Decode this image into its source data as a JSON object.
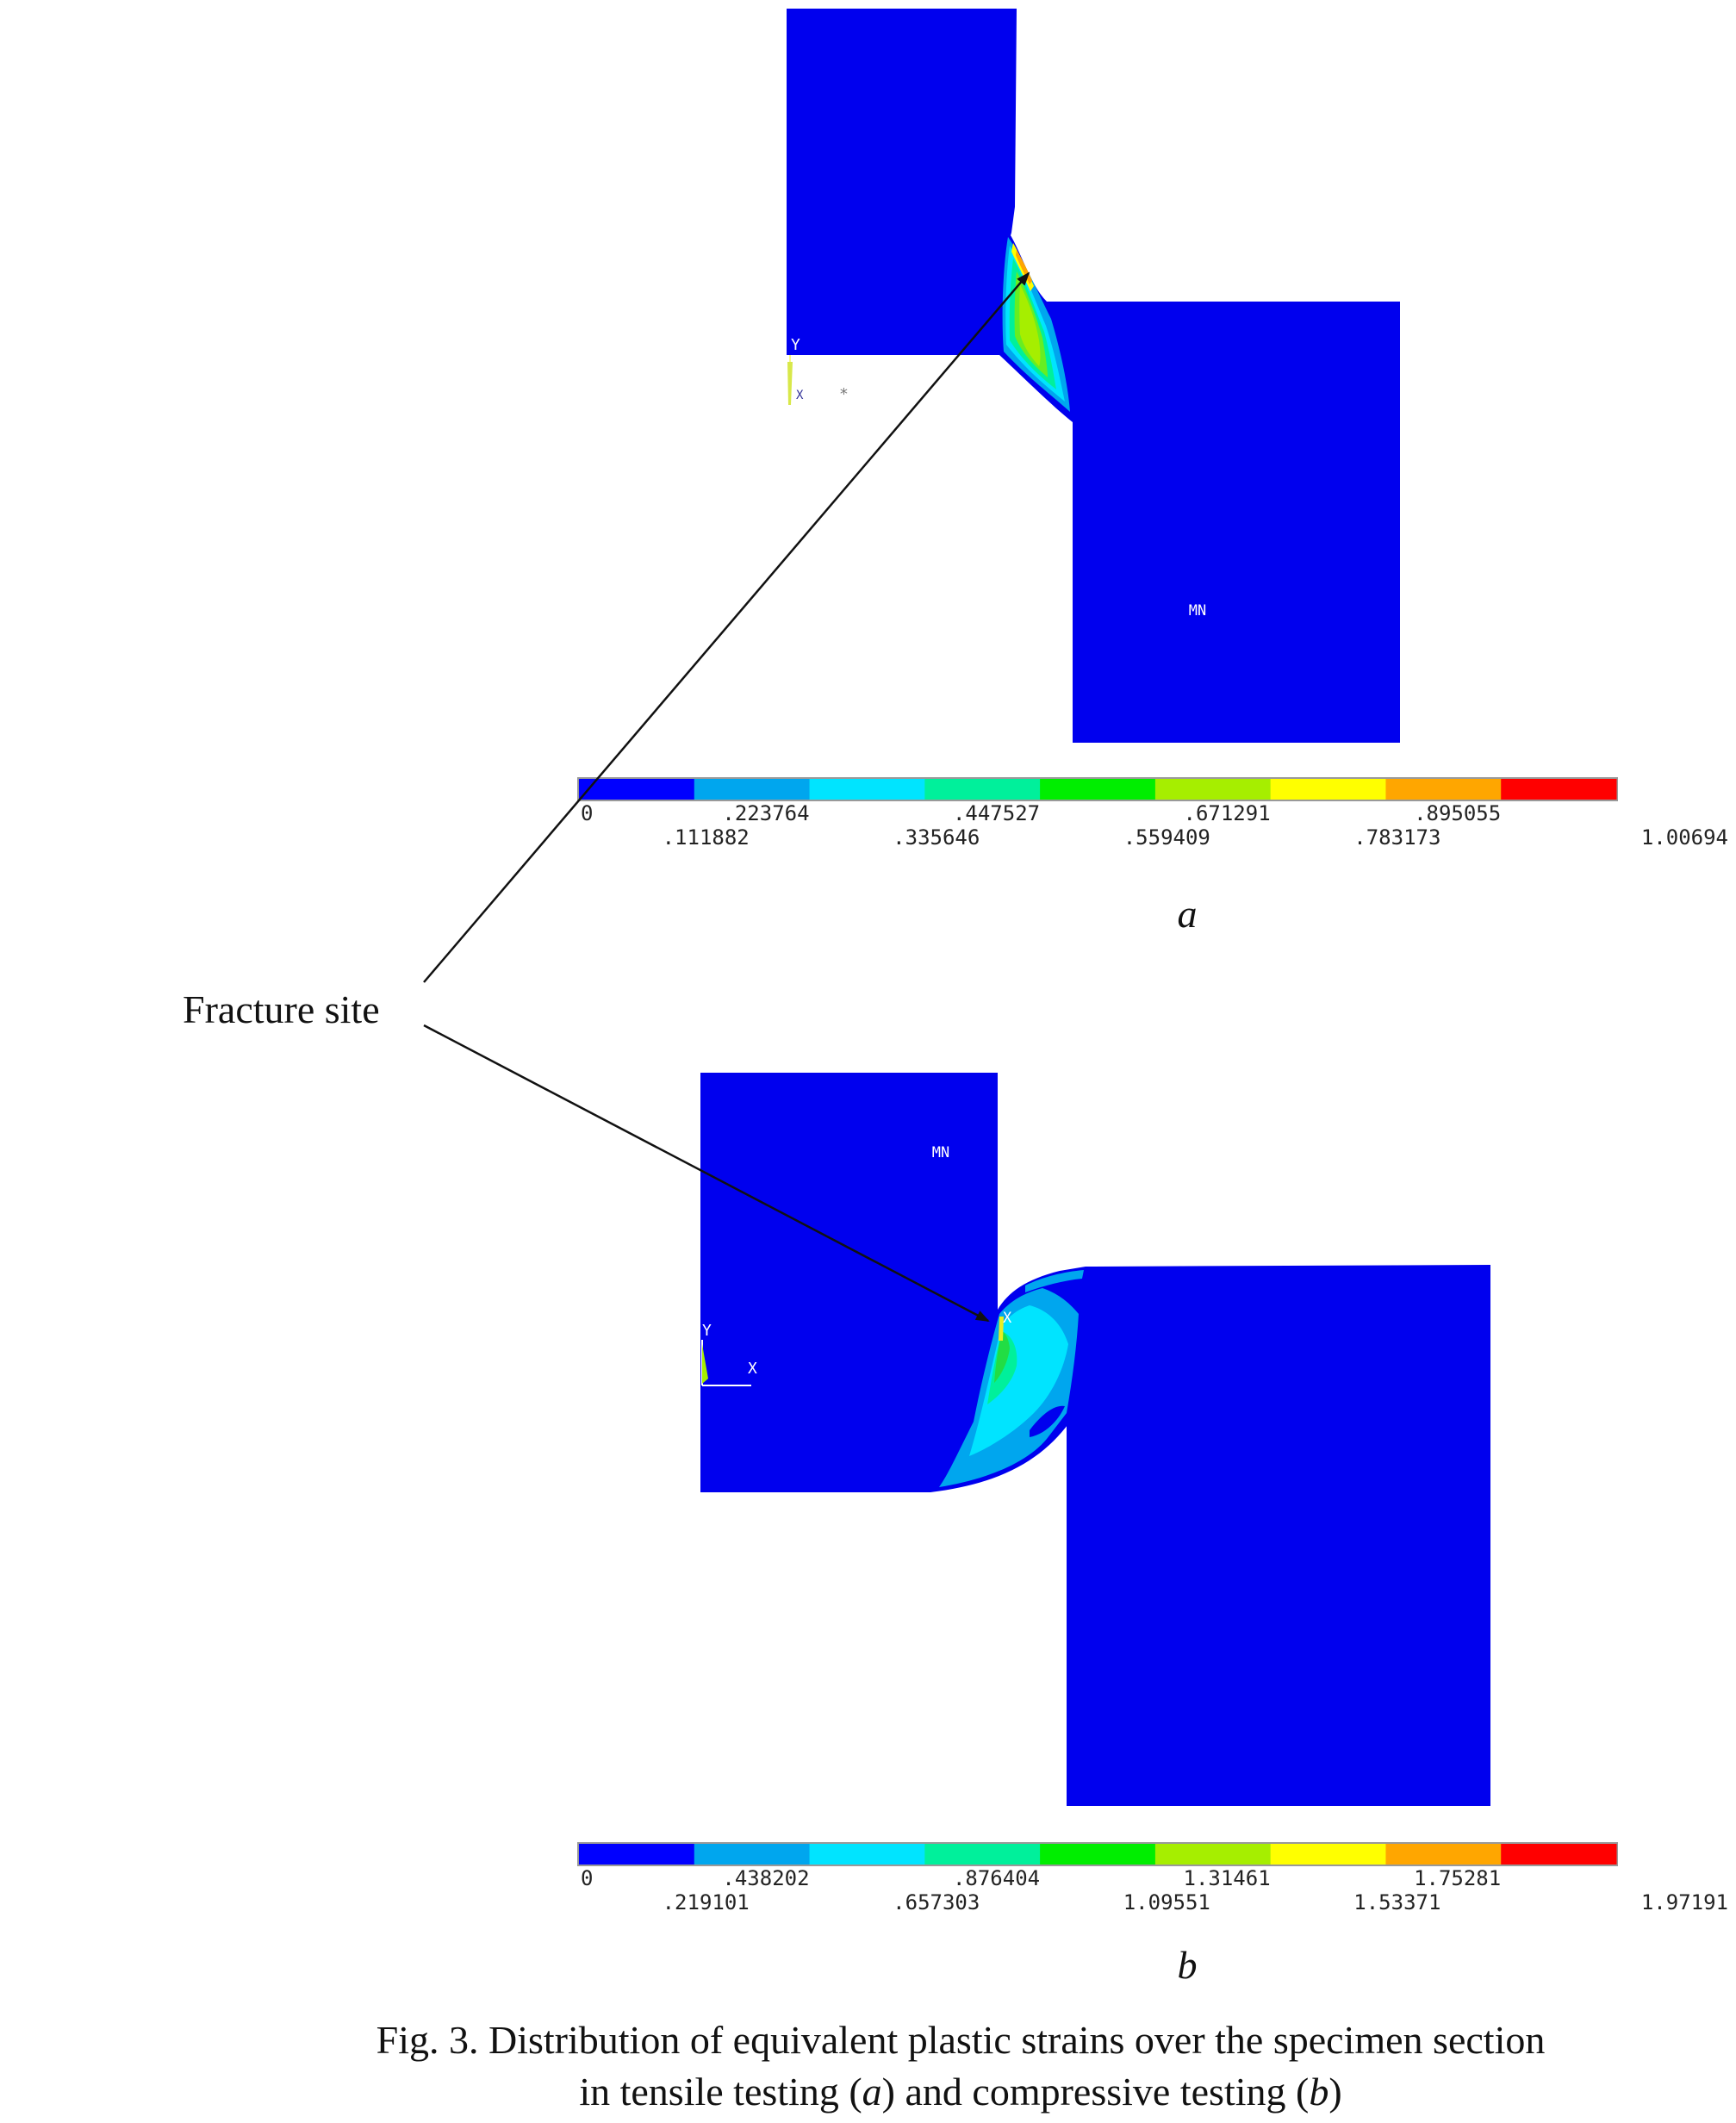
{
  "callout": {
    "label": "Fracture site"
  },
  "panel_a": {
    "label": "a",
    "mn_label": "MN",
    "triad_y": "Y",
    "triad_x": "X",
    "legend_top": [
      "0",
      ".223764",
      ".447527",
      ".671291",
      ".895055"
    ],
    "legend_bottom": [
      ".111882",
      ".335646",
      ".559409",
      ".783173",
      "1.00694"
    ]
  },
  "panel_b": {
    "label": "b",
    "mn_label": "MN",
    "triad_y": "Y",
    "triad_x": "X",
    "node_mark": "X",
    "legend_top": [
      "0",
      ".438202",
      ".876404",
      "1.31461",
      "1.75281"
    ],
    "legend_bottom": [
      ".219101",
      ".657303",
      "1.09551",
      "1.53371",
      "1.97191"
    ]
  },
  "legend_colors": [
    "#0000ff",
    "#00a6ee",
    "#00e4ff",
    "#00f09b",
    "#00ee00",
    "#a6ee00",
    "#ffff00",
    "#ffa600",
    "#ff0000"
  ],
  "caption": {
    "line1": "Fig. 3. Distribution of equivalent plastic strains over the specimen section",
    "line2_pre": "in tensile testing (",
    "line2_a": "a",
    "line2_mid": ") and compressive testing (",
    "line2_b": "b",
    "line2_post": ")"
  }
}
